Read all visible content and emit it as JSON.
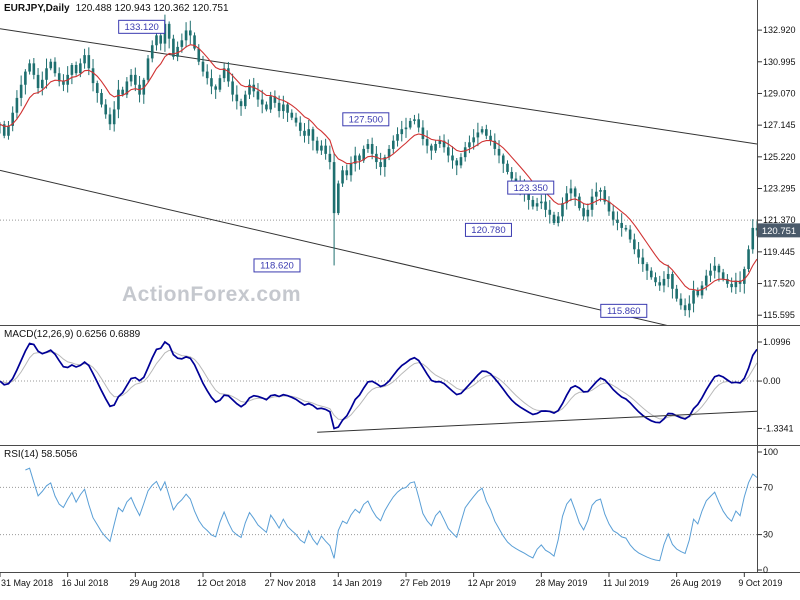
{
  "colors": {
    "candle": "#1e6f6f",
    "ma": "#d03232",
    "macd_line": "#000096",
    "macd_signal": "#b9b9b9",
    "rsi": "#5a9fd6",
    "annotation": "#3a3ab0",
    "tag_bg": "#4a5a6a",
    "trendline": "#333333",
    "frame": "#4a4a4a",
    "grid_dotted": "#999999",
    "axis_text": "#111111",
    "watermark": "#c5c8ce"
  },
  "chart_data": {
    "type": "candlestick",
    "title": "EURJPY,Daily",
    "ohlc_display": "120.488 120.943 120.362 120.751",
    "watermark": "ActionForex.com",
    "price_axis": {
      "min": 115.0,
      "max": 134.75,
      "labels": [
        "132.920",
        "130.995",
        "129.070",
        "127.145",
        "125.220",
        "123.295",
        "121.370",
        "119.445",
        "117.520",
        "115.595"
      ],
      "values": [
        132.92,
        130.995,
        129.07,
        127.145,
        125.22,
        123.295,
        121.37,
        119.445,
        117.52,
        115.595
      ]
    },
    "bid_line": 121.37,
    "current_price": {
      "text": "120.751",
      "value": 120.751
    },
    "annotations": [
      {
        "text": "133.120",
        "day": 67,
        "price": 133.12
      },
      {
        "text": "127.500",
        "day": 173,
        "price": 127.5
      },
      {
        "text": "123.350",
        "day": 251,
        "price": 123.35
      },
      {
        "text": "120.780",
        "day": 231,
        "price": 120.78
      },
      {
        "text": "118.620",
        "day": 131,
        "price": 118.62
      },
      {
        "text": "115.860",
        "day": 295,
        "price": 115.86
      }
    ],
    "channel_lines": [
      {
        "d1": 0,
        "p1": 133.0,
        "d2": 358,
        "p2": 126.0
      },
      {
        "d1": 0,
        "p1": 124.4,
        "d2": 358,
        "p2": 113.7
      }
    ],
    "series": {
      "step_days": 2,
      "closes": [
        127.2,
        126.5,
        127.1,
        127.9,
        128.8,
        129.6,
        130.4,
        130.9,
        130.2,
        129.4,
        129.9,
        130.6,
        131.0,
        130.3,
        129.8,
        129.6,
        130.2,
        130.8,
        130.3,
        130.9,
        131.4,
        130.6,
        129.7,
        129.1,
        128.4,
        127.8,
        127.2,
        128.1,
        129.3,
        129.0,
        129.8,
        130.2,
        129.6,
        129.0,
        129.9,
        131.2,
        132.0,
        132.6,
        132.1,
        133.3,
        132.4,
        131.3,
        131.9,
        132.3,
        132.9,
        132.6,
        131.8,
        131.0,
        130.4,
        130.0,
        129.5,
        129.3,
        130.0,
        130.6,
        129.8,
        129.0,
        128.6,
        128.3,
        129.0,
        129.6,
        129.2,
        128.7,
        128.4,
        128.1,
        128.9,
        128.5,
        128.0,
        128.4,
        127.9,
        127.6,
        127.3,
        126.8,
        126.5,
        126.9,
        126.2,
        125.6,
        125.9,
        125.4,
        124.9,
        121.8,
        123.6,
        124.4,
        124.1,
        124.8,
        125.3,
        125.0,
        125.7,
        126.0,
        125.4,
        124.9,
        124.6,
        125.2,
        125.7,
        126.2,
        126.6,
        126.9,
        127.0,
        127.4,
        127.5,
        127.0,
        126.3,
        125.9,
        125.6,
        126.0,
        126.2,
        125.8,
        125.3,
        125.0,
        124.7,
        125.2,
        125.8,
        126.1,
        126.4,
        126.7,
        126.9,
        126.5,
        126.2,
        125.7,
        125.3,
        124.8,
        124.3,
        123.9,
        123.6,
        123.3,
        123.0,
        122.6,
        122.2,
        122.4,
        122.5,
        122.0,
        121.7,
        121.2,
        121.6,
        122.4,
        123.0,
        123.3,
        122.8,
        122.1,
        121.6,
        122.0,
        122.8,
        123.1,
        123.2,
        122.5,
        121.9,
        121.4,
        121.2,
        120.9,
        120.8,
        120.2,
        119.6,
        119.1,
        118.7,
        118.3,
        117.9,
        117.6,
        117.4,
        117.8,
        118.1,
        117.2,
        116.6,
        116.2,
        115.9,
        116.3,
        117.1,
        116.8,
        117.4,
        118.0,
        118.3,
        118.6,
        118.2,
        117.8,
        117.5,
        117.3,
        117.7,
        117.5,
        118.4,
        119.6,
        120.9,
        120.751
      ],
      "special_wicks": [
        {
          "day": 158,
          "low": 118.62
        },
        {
          "day": 356,
          "high": 121.43
        }
      ]
    },
    "macd": {
      "label": "MACD(12,26,9)",
      "display": "0.6256 0.6889",
      "params": [
        12,
        26,
        9
      ],
      "axis": [
        {
          "text": "1.0996",
          "value": 1.0996
        },
        {
          "text": "0.00",
          "value": 0
        },
        {
          "text": "-1.3341",
          "value": -1.3341
        }
      ],
      "trendline": {
        "d1": 150,
        "v1": -1.44,
        "d2": 358,
        "v2": -0.85
      }
    },
    "rsi": {
      "label": "RSI(14)",
      "display": "58.5056",
      "period": 14,
      "levels": [
        70,
        30
      ],
      "axis": [
        {
          "text": "100",
          "value": 100
        },
        {
          "text": "70",
          "value": 70
        },
        {
          "text": "30",
          "value": 30
        },
        {
          "text": "0",
          "value": 0
        }
      ]
    },
    "x_axis": {
      "labels": [
        "31 May 2018",
        "16 Jul 2018",
        "29 Aug 2018",
        "12 Oct 2018",
        "27 Nov 2018",
        "14 Jan 2019",
        "27 Feb 2019",
        "12 Apr 2019",
        "28 May 2019",
        "11 Jul 2019",
        "26 Aug 2019",
        "9 Oct 2019"
      ],
      "days": [
        0,
        32,
        64,
        96,
        128,
        160,
        192,
        224,
        256,
        288,
        320,
        352
      ]
    }
  }
}
